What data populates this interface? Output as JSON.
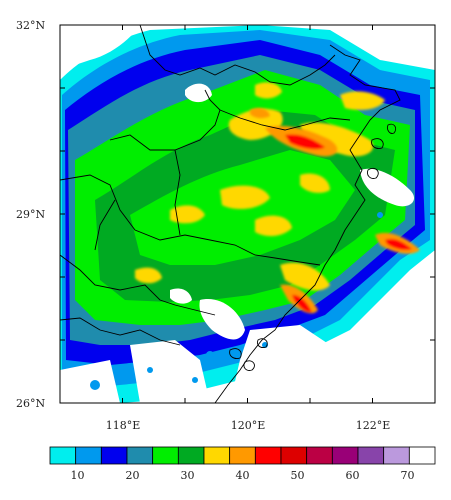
{
  "map": {
    "lat_labels": [
      "32°N",
      "29°N",
      "26°N"
    ],
    "lon_labels": [
      "118°E",
      "120°E",
      "122°E"
    ],
    "lat_range": [
      26,
      32
    ],
    "lon_range": [
      117,
      123
    ],
    "lat_ticks_deg": [
      26,
      27,
      28,
      29,
      30,
      31,
      32
    ],
    "lon_ticks_deg": [
      117,
      118,
      119,
      120,
      121,
      122,
      123
    ]
  },
  "colorbar": {
    "labels": [
      "10",
      "20",
      "30",
      "40",
      "50",
      "60",
      "70"
    ],
    "label_values": [
      10,
      20,
      30,
      40,
      50,
      60,
      70
    ],
    "range": [
      5,
      75
    ],
    "colors": [
      "#00eeee",
      "#0099ee",
      "#0000ee",
      "#1f8cad",
      "#00ee00",
      "#00aa22",
      "#ffd800",
      "#ff9900",
      "#ff0000",
      "#dd0000",
      "#bb0044",
      "#990077",
      "#8844aa",
      "#bb99dd",
      "#ffffff"
    ]
  }
}
